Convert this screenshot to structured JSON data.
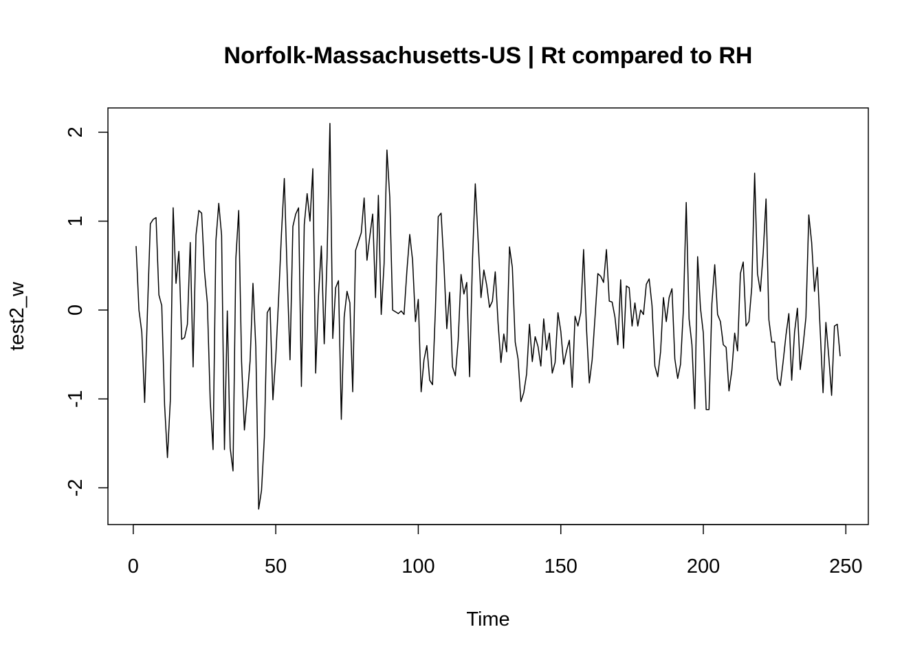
{
  "chart_data": {
    "type": "line",
    "title": "Norfolk-Massachusetts-US | Rt compared to RH",
    "xlabel": "Time",
    "ylabel": "test2_w",
    "xlim": [
      1,
      248
    ],
    "ylim": [
      -2.24,
      2.1
    ],
    "x_ticks": [
      0,
      50,
      100,
      150,
      200,
      250
    ],
    "y_ticks": [
      -2,
      -1,
      0,
      1,
      2
    ],
    "x_tick_labels": [
      "0",
      "50",
      "100",
      "150",
      "200",
      "250"
    ],
    "y_tick_labels": [
      "-2",
      "-1",
      "0",
      "1",
      "2"
    ],
    "line_color": "#000000",
    "series": [
      {
        "x_start": 1,
        "x_step": 1,
        "values": [
          0.72,
          0.0,
          -0.25,
          -1.04,
          0.0,
          0.97,
          1.02,
          1.04,
          0.17,
          0.05,
          -1.07,
          -1.66,
          -1.02,
          1.15,
          0.3,
          0.66,
          -0.33,
          -0.31,
          -0.16,
          0.76,
          -0.64,
          0.84,
          1.12,
          1.09,
          0.43,
          0.08,
          -1.02,
          -1.57,
          0.78,
          1.2,
          0.84,
          -1.57,
          -0.01,
          -1.55,
          -1.81,
          0.58,
          1.12,
          -0.58,
          -1.35,
          -0.98,
          -0.57,
          0.3,
          -0.42,
          -2.24,
          -2.03,
          -1.43,
          -0.03,
          0.03,
          -1.01,
          -0.53,
          0.13,
          0.86,
          1.48,
          0.41,
          -0.56,
          0.94,
          1.08,
          1.15,
          -0.86,
          0.96,
          1.31,
          1.0,
          1.59,
          -0.71,
          0.16,
          0.72,
          -0.38,
          0.59,
          2.1,
          -0.32,
          0.25,
          0.33,
          -1.23,
          -0.08,
          0.21,
          0.08,
          -0.92,
          0.67,
          0.77,
          0.87,
          1.26,
          0.56,
          0.83,
          1.08,
          0.14,
          1.29,
          -0.05,
          0.52,
          1.8,
          1.27,
          0.0,
          -0.02,
          -0.04,
          -0.01,
          -0.05,
          0.44,
          0.85,
          0.56,
          -0.13,
          0.12,
          -0.92,
          -0.56,
          -0.4,
          -0.79,
          -0.84,
          0.0,
          1.05,
          1.09,
          0.51,
          -0.21,
          0.2,
          -0.64,
          -0.74,
          -0.34,
          0.4,
          0.18,
          0.31,
          -0.75,
          0.56,
          1.42,
          0.78,
          0.14,
          0.45,
          0.28,
          0.03,
          0.1,
          0.43,
          -0.15,
          -0.59,
          -0.27,
          -0.47,
          0.71,
          0.48,
          -0.36,
          -0.55,
          -1.03,
          -0.93,
          -0.72,
          -0.16,
          -0.58,
          -0.3,
          -0.41,
          -0.63,
          -0.1,
          -0.45,
          -0.26,
          -0.71,
          -0.59,
          -0.03,
          -0.24,
          -0.61,
          -0.46,
          -0.34,
          -0.87,
          -0.07,
          -0.18,
          -0.03,
          0.68,
          -0.2,
          -0.82,
          -0.56,
          -0.08,
          0.41,
          0.38,
          0.31,
          0.68,
          0.1,
          0.09,
          -0.08,
          -0.39,
          0.34,
          -0.43,
          0.27,
          0.25,
          -0.18,
          0.08,
          -0.18,
          0.0,
          -0.05,
          0.29,
          0.35,
          0.05,
          -0.63,
          -0.75,
          -0.47,
          0.14,
          -0.13,
          0.14,
          0.24,
          -0.55,
          -0.77,
          -0.61,
          0.0,
          1.21,
          -0.1,
          -0.39,
          -1.11,
          0.6,
          0.02,
          -0.26,
          -1.12,
          -1.12,
          0.07,
          0.51,
          -0.05,
          -0.13,
          -0.39,
          -0.42,
          -0.91,
          -0.68,
          -0.26,
          -0.46,
          0.41,
          0.54,
          -0.18,
          -0.13,
          0.26,
          1.54,
          0.41,
          0.21,
          0.64,
          1.25,
          -0.11,
          -0.36,
          -0.36,
          -0.77,
          -0.85,
          -0.58,
          -0.28,
          -0.04,
          -0.79,
          -0.25,
          0.02,
          -0.67,
          -0.4,
          -0.08,
          1.07,
          0.76,
          0.21,
          0.48,
          -0.23,
          -0.93,
          -0.14,
          -0.52,
          -0.96,
          -0.18,
          -0.16,
          -0.52
        ]
      }
    ]
  }
}
